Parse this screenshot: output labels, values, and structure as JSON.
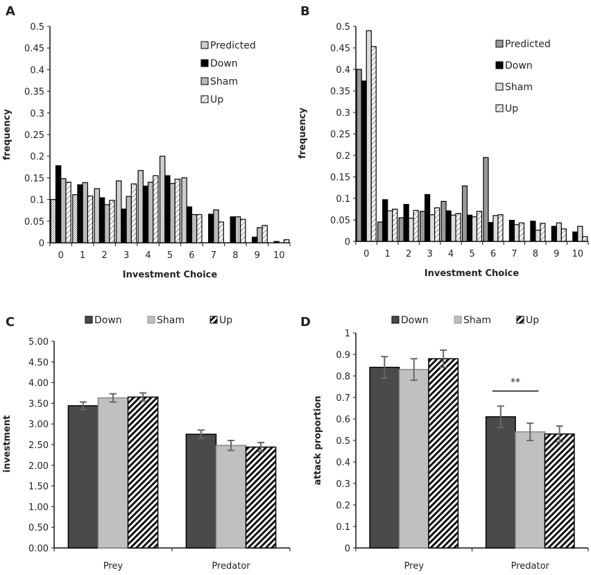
{
  "chart_data": [
    {
      "panel": "A",
      "type": "bar",
      "xlabel": "Investment Choice",
      "ylabel": "frequency",
      "ylim": [
        0,
        0.5
      ],
      "yticks": [
        "0",
        "0.05",
        "0.1",
        "0.15",
        "0.2",
        "0.25",
        "0.3",
        "0.35",
        "0.4",
        "0.45",
        "0.5"
      ],
      "categories": [
        "0",
        "1",
        "2",
        "3",
        "4",
        "5",
        "6",
        "7",
        "8",
        "9",
        "10"
      ],
      "legend": "top-right",
      "series": [
        {
          "name": "Predicted",
          "values": [
            0.1,
            0.111,
            0.125,
            0.143,
            0.167,
            0.2,
            0.15,
            0,
            0,
            0,
            0
          ]
        },
        {
          "name": "Down",
          "values": [
            0.178,
            0.134,
            0.104,
            0.078,
            0.131,
            0.155,
            0.083,
            0.066,
            0.06,
            0.013,
            0.003
          ]
        },
        {
          "name": "Sham",
          "values": [
            0.148,
            0.139,
            0.088,
            0.107,
            0.14,
            0.137,
            0.065,
            0.076,
            0.06,
            0.035,
            0
          ]
        },
        {
          "name": "Up",
          "values": [
            0.14,
            0.108,
            0.098,
            0.136,
            0.155,
            0.147,
            0.065,
            0.048,
            0.054,
            0.04,
            0.007
          ]
        }
      ]
    },
    {
      "panel": "B",
      "type": "bar",
      "xlabel": "Investment Choice",
      "ylabel": "frequency",
      "ylim": [
        0,
        0.5
      ],
      "yticks": [
        "0",
        "0.05",
        "0.1",
        "0.15",
        "0.2",
        "0.25",
        "0.3",
        "0.35",
        "0.4",
        "0.45",
        "0.5"
      ],
      "categories": [
        "0",
        "1",
        "2",
        "3",
        "4",
        "5",
        "6",
        "7",
        "8",
        "9",
        "10"
      ],
      "legend": "top-right",
      "series": [
        {
          "name": "Predicted",
          "values": [
            0.4,
            0.045,
            0.055,
            0.07,
            0.093,
            0.129,
            0.195,
            0,
            0,
            0,
            0
          ]
        },
        {
          "name": "Down",
          "values": [
            0.373,
            0.097,
            0.086,
            0.109,
            0.071,
            0.061,
            0.044,
            0.049,
            0.047,
            0.035,
            0.022
          ]
        },
        {
          "name": "Sham",
          "values": [
            0.49,
            0.071,
            0.054,
            0.062,
            0.061,
            0.057,
            0.06,
            0.039,
            0.026,
            0.043,
            0.035
          ]
        },
        {
          "name": "Up",
          "values": [
            0.453,
            0.075,
            0.072,
            0.078,
            0.065,
            0.07,
            0.062,
            0.043,
            0.042,
            0.029,
            0.011
          ]
        }
      ]
    },
    {
      "panel": "C",
      "type": "bar",
      "xlabel": "",
      "ylabel": "investment",
      "ylim": [
        0,
        5
      ],
      "yticks": [
        "0.00",
        "0.50",
        "1.00",
        "1.50",
        "2.00",
        "2.50",
        "3.00",
        "3.50",
        "4.00",
        "4.50",
        "5.00"
      ],
      "categories": [
        "Prey",
        "Predator"
      ],
      "legend": "top",
      "series": [
        {
          "name": "Down",
          "values": [
            3.44,
            2.75
          ],
          "errors": [
            0.09,
            0.1
          ]
        },
        {
          "name": "Sham",
          "values": [
            3.63,
            2.48
          ],
          "errors": [
            0.1,
            0.12
          ]
        },
        {
          "name": "Up",
          "values": [
            3.65,
            2.44
          ],
          "errors": [
            0.1,
            0.11
          ]
        }
      ]
    },
    {
      "panel": "D",
      "type": "bar",
      "xlabel": "",
      "ylabel": "attack proportion",
      "ylim": [
        0,
        1
      ],
      "yticks": [
        "0",
        "0.1",
        "0.2",
        "0.3",
        "0.4",
        "0.5",
        "0.6",
        "0.7",
        "0.8",
        "0.9",
        "1"
      ],
      "categories": [
        "Prey",
        "Predator"
      ],
      "legend": "top",
      "annotation": "**",
      "series": [
        {
          "name": "Down",
          "values": [
            0.84,
            0.61
          ],
          "errors": [
            0.05,
            0.05
          ]
        },
        {
          "name": "Sham",
          "values": [
            0.83,
            0.54
          ],
          "errors": [
            0.05,
            0.04
          ]
        },
        {
          "name": "Up",
          "values": [
            0.88,
            0.53
          ],
          "errors": [
            0.04,
            0.037
          ]
        }
      ]
    }
  ]
}
